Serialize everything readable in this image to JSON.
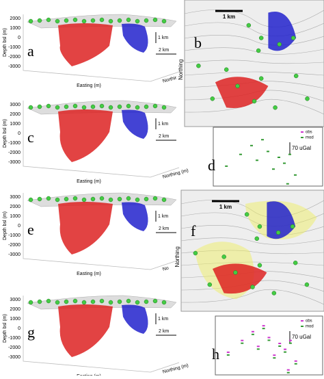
{
  "panels_3d": [
    {
      "label": "a",
      "y_label": "Depth bsl (m)",
      "y_ticks": [
        2000,
        1000,
        0,
        -1000,
        -2000,
        -3000
      ],
      "x_label": "Easting (m)",
      "z_label": "Northir",
      "scale_v": "1 km",
      "scale_h": "2 km"
    },
    {
      "label": "c",
      "y_label": "Depth bsl (m)",
      "y_ticks": [
        3000,
        2000,
        1000,
        0,
        -1000,
        -2000,
        -3000
      ],
      "x_label": "Easting (m)",
      "z_label": "Northing (m)",
      "scale_v": "1 km",
      "scale_h": "2 km"
    },
    {
      "label": "e",
      "y_label": "Depth bsl (m)",
      "y_ticks": [
        3000,
        2000,
        1000,
        0,
        -1000,
        -2000,
        -3000
      ],
      "x_label": "Easting (m)",
      "z_label": "No",
      "scale_v": "1 km",
      "scale_h": "2 km"
    },
    {
      "label": "g",
      "y_label": "Depth bsl (m)",
      "y_ticks": [
        3000,
        2000,
        1000,
        0,
        -1000,
        -2000,
        -3000
      ],
      "x_label": "Easting (m)",
      "z_label": "Northing (m)",
      "scale_v": "1 km",
      "scale_h": "2 km"
    }
  ],
  "maps": [
    {
      "label": "b",
      "scale": "1 km",
      "axis_label": "Northing"
    },
    {
      "label": "f",
      "scale": "1 km",
      "axis_label": "Northing"
    }
  ],
  "gravity": [
    {
      "label": "d",
      "legend": [
        "obs",
        "mod"
      ],
      "scale": "70 uGal"
    },
    {
      "label": "h",
      "legend": [
        "obs",
        "mod"
      ],
      "scale": "70 uGal"
    }
  ]
}
